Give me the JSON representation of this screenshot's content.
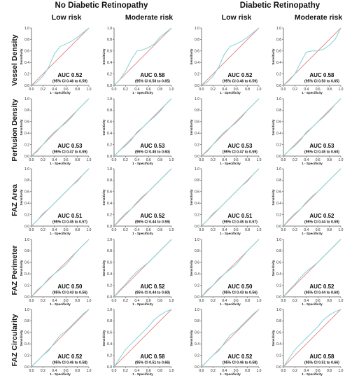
{
  "figure": {
    "groups": [
      "No Diabetic Retinopathy",
      "Diabetic Retinopathy"
    ],
    "columns": [
      "Low risk",
      "Moderate risk",
      "Low risk",
      "Moderate risk"
    ],
    "rows": [
      "Vessel Density",
      "Perfusion Density",
      "FAZ Area",
      "FAZ Perimeter",
      "FAZ Circularity"
    ]
  },
  "colors": {
    "roc_curve": "#7fd3d8",
    "reference_line": "#e8888a",
    "axis": "#555555"
  },
  "chart_data": [
    {
      "type": "line",
      "row": "Vessel Density",
      "group": "No Diabetic Retinopathy",
      "column": "Low risk",
      "xlabel": "1 - Specificity",
      "ylabel": "Sensitivity",
      "xlim": [
        0,
        1
      ],
      "ylim": [
        0,
        1
      ],
      "ticks": [
        "0.0",
        "0.2",
        "0.4",
        "0.6",
        "0.8",
        "1.0"
      ],
      "auc": "AUC 0.52",
      "ci": "(95% CI 0.46 to 0.59)",
      "series": [
        {
          "x": [
            0,
            0.1,
            0.2,
            0.3,
            0.4,
            0.5,
            0.6,
            0.7,
            0.8,
            0.9,
            1.0
          ],
          "y": [
            0,
            0.06,
            0.16,
            0.32,
            0.55,
            0.68,
            0.72,
            0.77,
            0.84,
            0.92,
            1.0
          ]
        }
      ]
    },
    {
      "type": "line",
      "row": "Vessel Density",
      "group": "No Diabetic Retinopathy",
      "column": "Moderate risk",
      "xlabel": "1 - Specificity",
      "ylabel": "Sensitivity",
      "xlim": [
        0,
        1
      ],
      "ylim": [
        0,
        1
      ],
      "ticks": [
        "0.0",
        "0.2",
        "0.4",
        "0.6",
        "0.8",
        "1.0"
      ],
      "auc": "AUC 0.58",
      "ci": "(95% CI 0.50 to 0.65)",
      "series": [
        {
          "x": [
            0,
            0.1,
            0.2,
            0.3,
            0.4,
            0.5,
            0.6,
            0.7,
            0.8,
            0.9,
            1.0
          ],
          "y": [
            0,
            0.1,
            0.25,
            0.45,
            0.6,
            0.62,
            0.66,
            0.72,
            0.84,
            0.92,
            1.0
          ]
        }
      ]
    },
    {
      "type": "line",
      "row": "Vessel Density",
      "group": "Diabetic Retinopathy",
      "column": "Low risk",
      "xlabel": "1 - Specificity",
      "ylabel": "Sensitivity",
      "xlim": [
        0,
        1
      ],
      "ylim": [
        0,
        1
      ],
      "ticks": [
        "0.0",
        "0.2",
        "0.4",
        "0.6",
        "0.8",
        "1.0"
      ],
      "auc": "AUC 0.52",
      "ci": "(95% CI 0.46 to 0.59)",
      "series": [
        {
          "x": [
            0,
            0.1,
            0.2,
            0.3,
            0.4,
            0.5,
            0.6,
            0.7,
            0.8,
            0.9,
            1.0
          ],
          "y": [
            0,
            0.06,
            0.16,
            0.32,
            0.55,
            0.68,
            0.72,
            0.77,
            0.84,
            0.92,
            1.0
          ]
        }
      ]
    },
    {
      "type": "line",
      "row": "Vessel Density",
      "group": "Diabetic Retinopathy",
      "column": "Moderate risk",
      "xlabel": "1 - Specificity",
      "ylabel": "Sensitivity",
      "xlim": [
        0,
        1
      ],
      "ylim": [
        0,
        1
      ],
      "ticks": [
        "0.0",
        "0.2",
        "0.4",
        "0.6",
        "0.8",
        "1.0"
      ],
      "auc": "AUC 0.58",
      "ci": "(95% CI 0.50 to 0.65)",
      "series": [
        {
          "x": [
            0,
            0.1,
            0.2,
            0.3,
            0.4,
            0.5,
            0.6,
            0.7,
            0.8,
            0.9,
            1.0
          ],
          "y": [
            0,
            0.08,
            0.2,
            0.4,
            0.58,
            0.6,
            0.6,
            0.63,
            0.7,
            0.8,
            1.0
          ]
        }
      ]
    },
    {
      "type": "line",
      "row": "Perfusion Density",
      "group": "No Diabetic Retinopathy",
      "column": "Low risk",
      "xlabel": "1 - Specificity",
      "ylabel": "Sensitivity",
      "xlim": [
        0,
        1
      ],
      "ylim": [
        0,
        1
      ],
      "ticks": [
        "0.0",
        "0.2",
        "0.4",
        "0.6",
        "0.8",
        "1.0"
      ],
      "auc": "AUC 0.53",
      "ci": "(95% CI 0.47 to 0.59)",
      "series": [
        {
          "x": [
            0,
            0.1,
            0.2,
            0.3,
            0.4,
            0.5,
            0.6,
            0.7,
            0.8,
            0.9,
            1.0
          ],
          "y": [
            0,
            0.08,
            0.2,
            0.32,
            0.42,
            0.5,
            0.58,
            0.68,
            0.8,
            0.9,
            1.0
          ]
        }
      ]
    },
    {
      "type": "line",
      "row": "Perfusion Density",
      "group": "No Diabetic Retinopathy",
      "column": "Moderate risk",
      "xlabel": "1 - Specificity",
      "ylabel": "Sensitivity",
      "xlim": [
        0,
        1
      ],
      "ylim": [
        0,
        1
      ],
      "ticks": [
        "0.0",
        "0.2",
        "0.4",
        "0.6",
        "0.8",
        "1.0"
      ],
      "auc": "AUC 0.53",
      "ci": "(95% CI 0.45 to 0.60)",
      "series": [
        {
          "x": [
            0,
            0.1,
            0.2,
            0.3,
            0.4,
            0.5,
            0.6,
            0.7,
            0.8,
            0.9,
            1.0
          ],
          "y": [
            0,
            0.1,
            0.18,
            0.28,
            0.42,
            0.5,
            0.6,
            0.68,
            0.78,
            0.9,
            1.0
          ]
        }
      ]
    },
    {
      "type": "line",
      "row": "Perfusion Density",
      "group": "Diabetic Retinopathy",
      "column": "Low risk",
      "xlabel": "1 - Specificity",
      "ylabel": "Sensitivity",
      "xlim": [
        0,
        1
      ],
      "ylim": [
        0,
        1
      ],
      "ticks": [
        "0.0",
        "0.2",
        "0.4",
        "0.6",
        "0.8",
        "1.0"
      ],
      "auc": "AUC 0.53",
      "ci": "(95% CI 0.47 to 0.59)",
      "series": [
        {
          "x": [
            0,
            0.1,
            0.2,
            0.3,
            0.4,
            0.5,
            0.6,
            0.7,
            0.8,
            0.9,
            1.0
          ],
          "y": [
            0,
            0.08,
            0.2,
            0.32,
            0.42,
            0.5,
            0.58,
            0.68,
            0.8,
            0.9,
            1.0
          ]
        }
      ]
    },
    {
      "type": "line",
      "row": "Perfusion Density",
      "group": "Diabetic Retinopathy",
      "column": "Moderate risk",
      "xlabel": "1 - Specificity",
      "ylabel": "Sensitivity",
      "xlim": [
        0,
        1
      ],
      "ylim": [
        0,
        1
      ],
      "ticks": [
        "0.0",
        "0.2",
        "0.4",
        "0.6",
        "0.8",
        "1.0"
      ],
      "auc": "AUC 0.53",
      "ci": "(95% CI 0.45 to 0.60)",
      "series": [
        {
          "x": [
            0,
            0.1,
            0.2,
            0.3,
            0.4,
            0.5,
            0.6,
            0.7,
            0.8,
            0.9,
            1.0
          ],
          "y": [
            0,
            0.1,
            0.18,
            0.28,
            0.42,
            0.5,
            0.6,
            0.68,
            0.78,
            0.9,
            1.0
          ]
        }
      ]
    },
    {
      "type": "line",
      "row": "FAZ Area",
      "group": "No Diabetic Retinopathy",
      "column": "Low risk",
      "xlabel": "1 - Specificity",
      "ylabel": "Sensitivity",
      "xlim": [
        0,
        1
      ],
      "ylim": [
        0,
        1
      ],
      "ticks": [
        "0.0",
        "0.2",
        "0.4",
        "0.6",
        "0.8",
        "1.0"
      ],
      "auc": "AUC 0.51",
      "ci": "(95% CI 0.45 to 0.57)",
      "series": [
        {
          "x": [
            0,
            0.1,
            0.2,
            0.3,
            0.4,
            0.5,
            0.6,
            0.7,
            0.8,
            0.9,
            1.0
          ],
          "y": [
            0,
            0.1,
            0.22,
            0.3,
            0.4,
            0.5,
            0.6,
            0.7,
            0.78,
            0.9,
            1.0
          ]
        }
      ]
    },
    {
      "type": "line",
      "row": "FAZ Area",
      "group": "No Diabetic Retinopathy",
      "column": "Moderate risk",
      "xlabel": "1 - Specificity",
      "ylabel": "Sensitivity",
      "xlim": [
        0,
        1
      ],
      "ylim": [
        0,
        1
      ],
      "ticks": [
        "0.0",
        "0.2",
        "0.4",
        "0.6",
        "0.8",
        "1.0"
      ],
      "auc": "AUC 0.52",
      "ci": "(95% CI 0.44 to 0.59)",
      "series": [
        {
          "x": [
            0,
            0.1,
            0.2,
            0.3,
            0.4,
            0.5,
            0.6,
            0.7,
            0.8,
            0.9,
            1.0
          ],
          "y": [
            0,
            0.12,
            0.22,
            0.3,
            0.42,
            0.52,
            0.6,
            0.7,
            0.8,
            0.9,
            1.0
          ]
        }
      ]
    },
    {
      "type": "line",
      "row": "FAZ Area",
      "group": "Diabetic Retinopathy",
      "column": "Low risk",
      "xlabel": "1 - Specificity",
      "ylabel": "Sensitivity",
      "xlim": [
        0,
        1
      ],
      "ylim": [
        0,
        1
      ],
      "ticks": [
        "0.0",
        "0.2",
        "0.4",
        "0.6",
        "0.8",
        "1.0"
      ],
      "auc": "AUC 0.51",
      "ci": "(95% CI 0.45 to 0.57)",
      "series": [
        {
          "x": [
            0,
            0.1,
            0.2,
            0.3,
            0.4,
            0.5,
            0.6,
            0.7,
            0.8,
            0.9,
            1.0
          ],
          "y": [
            0,
            0.1,
            0.22,
            0.3,
            0.4,
            0.5,
            0.6,
            0.7,
            0.78,
            0.9,
            1.0
          ]
        }
      ]
    },
    {
      "type": "line",
      "row": "FAZ Area",
      "group": "Diabetic Retinopathy",
      "column": "Moderate risk",
      "xlabel": "1 - Specificity",
      "ylabel": "Sensitivity",
      "xlim": [
        0,
        1
      ],
      "ylim": [
        0,
        1
      ],
      "ticks": [
        "0.0",
        "0.2",
        "0.4",
        "0.6",
        "0.8",
        "1.0"
      ],
      "auc": "AUC 0.52",
      "ci": "(95% CI 0.44 to 0.59)",
      "series": [
        {
          "x": [
            0,
            0.1,
            0.2,
            0.3,
            0.4,
            0.5,
            0.6,
            0.7,
            0.8,
            0.9,
            1.0
          ],
          "y": [
            0,
            0.12,
            0.22,
            0.3,
            0.42,
            0.52,
            0.6,
            0.7,
            0.8,
            0.9,
            1.0
          ]
        }
      ]
    },
    {
      "type": "line",
      "row": "FAZ Perimeter",
      "group": "No Diabetic Retinopathy",
      "column": "Low risk",
      "xlabel": "1 - Specificity",
      "ylabel": "Sensitivity",
      "xlim": [
        0,
        1
      ],
      "ylim": [
        0,
        1
      ],
      "ticks": [
        "0.0",
        "0.2",
        "0.4",
        "0.6",
        "0.8",
        "1.0"
      ],
      "auc": "AUC 0.50",
      "ci": "(95% CI 0.43 to 0.56)",
      "series": [
        {
          "x": [
            0,
            0.1,
            0.2,
            0.3,
            0.4,
            0.5,
            0.6,
            0.7,
            0.8,
            0.9,
            1.0
          ],
          "y": [
            0,
            0.12,
            0.2,
            0.32,
            0.4,
            0.48,
            0.56,
            0.68,
            0.8,
            0.9,
            1.0
          ]
        }
      ]
    },
    {
      "type": "line",
      "row": "FAZ Perimeter",
      "group": "No Diabetic Retinopathy",
      "column": "Moderate risk",
      "xlabel": "1 - Specificity",
      "ylabel": "Sensitivity",
      "xlim": [
        0,
        1
      ],
      "ylim": [
        0,
        1
      ],
      "ticks": [
        "0.0",
        "0.2",
        "0.4",
        "0.6",
        "0.8",
        "1.0"
      ],
      "auc": "AUC 0.52",
      "ci": "(95% CI 0.44 to 0.60)",
      "series": [
        {
          "x": [
            0,
            0.1,
            0.2,
            0.3,
            0.4,
            0.5,
            0.6,
            0.7,
            0.8,
            0.9,
            1.0
          ],
          "y": [
            0,
            0.12,
            0.22,
            0.34,
            0.44,
            0.52,
            0.6,
            0.7,
            0.8,
            0.9,
            1.0
          ]
        }
      ]
    },
    {
      "type": "line",
      "row": "FAZ Perimeter",
      "group": "Diabetic Retinopathy",
      "column": "Low risk",
      "xlabel": "1 - Specificity",
      "ylabel": "Sensitivity",
      "xlim": [
        0,
        1
      ],
      "ylim": [
        0,
        1
      ],
      "ticks": [
        "0.0",
        "0.2",
        "0.4",
        "0.6",
        "0.8",
        "1.0"
      ],
      "auc": "AUC 0.50",
      "ci": "(95% CI 0.43 to 0.56)",
      "series": [
        {
          "x": [
            0,
            0.1,
            0.2,
            0.3,
            0.4,
            0.5,
            0.6,
            0.7,
            0.8,
            0.9,
            1.0
          ],
          "y": [
            0,
            0.12,
            0.2,
            0.32,
            0.4,
            0.48,
            0.56,
            0.68,
            0.8,
            0.9,
            1.0
          ]
        }
      ]
    },
    {
      "type": "line",
      "row": "FAZ Perimeter",
      "group": "Diabetic Retinopathy",
      "column": "Moderate risk",
      "xlabel": "1 - Specificity",
      "ylabel": "Sensitivity",
      "xlim": [
        0,
        1
      ],
      "ylim": [
        0,
        1
      ],
      "ticks": [
        "0.0",
        "0.2",
        "0.4",
        "0.6",
        "0.8",
        "1.0"
      ],
      "auc": "AUC 0.52",
      "ci": "(95% CI 0.44 to 0.60)",
      "series": [
        {
          "x": [
            0,
            0.1,
            0.2,
            0.3,
            0.4,
            0.5,
            0.6,
            0.7,
            0.8,
            0.9,
            1.0
          ],
          "y": [
            0,
            0.12,
            0.22,
            0.34,
            0.44,
            0.52,
            0.6,
            0.7,
            0.8,
            0.9,
            1.0
          ]
        }
      ]
    },
    {
      "type": "line",
      "row": "FAZ Circularity",
      "group": "No Diabetic Retinopathy",
      "column": "Low risk",
      "xlabel": "1 - Specificity",
      "ylabel": "Sensitivity",
      "xlim": [
        0,
        1
      ],
      "ylim": [
        0,
        1
      ],
      "ticks": [
        "0.0",
        "0.2",
        "0.4",
        "0.6",
        "0.8",
        "1.0"
      ],
      "auc": "AUC 0.52",
      "ci": "(95% CI 0.46 to 0.58)",
      "series": [
        {
          "x": [
            0,
            0.1,
            0.2,
            0.3,
            0.4,
            0.5,
            0.6,
            0.7,
            0.8,
            0.9,
            1.0
          ],
          "y": [
            0,
            0.1,
            0.2,
            0.28,
            0.42,
            0.55,
            0.62,
            0.72,
            0.82,
            0.92,
            1.0
          ]
        }
      ]
    },
    {
      "type": "line",
      "row": "FAZ Circularity",
      "group": "No Diabetic Retinopathy",
      "column": "Moderate risk",
      "xlabel": "1 - Specificity",
      "ylabel": "Sensitivity",
      "xlim": [
        0,
        1
      ],
      "ylim": [
        0,
        1
      ],
      "ticks": [
        "0.0",
        "0.2",
        "0.4",
        "0.6",
        "0.8",
        "1.0"
      ],
      "auc": "AUC 0.58",
      "ci": "(95% CI 0.51 to 0.66)",
      "series": [
        {
          "x": [
            0,
            0.1,
            0.2,
            0.3,
            0.4,
            0.5,
            0.6,
            0.7,
            0.8,
            0.9,
            1.0
          ],
          "y": [
            0,
            0.15,
            0.3,
            0.4,
            0.5,
            0.6,
            0.7,
            0.82,
            0.9,
            0.96,
            1.0
          ]
        }
      ]
    },
    {
      "type": "line",
      "row": "FAZ Circularity",
      "group": "Diabetic Retinopathy",
      "column": "Low risk",
      "xlabel": "1 - Specificity",
      "ylabel": "Sensitivity",
      "xlim": [
        0,
        1
      ],
      "ylim": [
        0,
        1
      ],
      "ticks": [
        "0.0",
        "0.2",
        "0.4",
        "0.6",
        "0.8",
        "1.0"
      ],
      "auc": "AUC 0.52",
      "ci": "(95% CI 0.46 to 0.58)",
      "series": [
        {
          "x": [
            0,
            0.1,
            0.2,
            0.3,
            0.4,
            0.5,
            0.6,
            0.7,
            0.8,
            0.9,
            1.0
          ],
          "y": [
            0,
            0.1,
            0.2,
            0.28,
            0.42,
            0.55,
            0.62,
            0.72,
            0.82,
            0.92,
            1.0
          ]
        }
      ]
    },
    {
      "type": "line",
      "row": "FAZ Circularity",
      "group": "Diabetic Retinopathy",
      "column": "Moderate risk",
      "xlabel": "1 - Specificity",
      "ylabel": "Sensitivity",
      "xlim": [
        0,
        1
      ],
      "ylim": [
        0,
        1
      ],
      "ticks": [
        "0.0",
        "0.2",
        "0.4",
        "0.6",
        "0.8",
        "1.0"
      ],
      "auc": "AUC 0.58",
      "ci": "(95% CI 0.51 to 0.66)",
      "series": [
        {
          "x": [
            0,
            0.1,
            0.2,
            0.3,
            0.4,
            0.5,
            0.6,
            0.7,
            0.8,
            0.9,
            1.0
          ],
          "y": [
            0,
            0.15,
            0.3,
            0.4,
            0.5,
            0.6,
            0.7,
            0.82,
            0.9,
            0.96,
            1.0
          ]
        }
      ]
    }
  ]
}
